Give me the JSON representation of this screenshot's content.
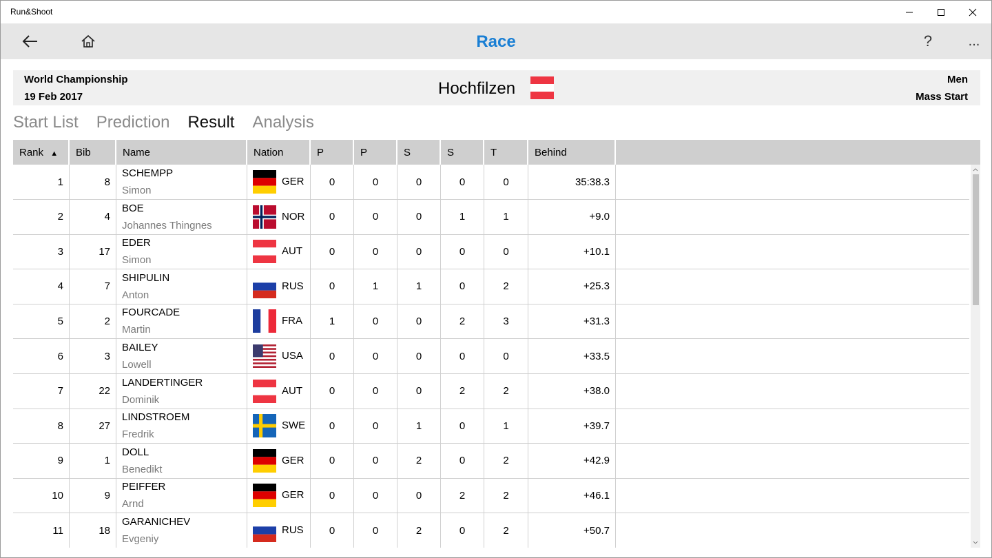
{
  "window": {
    "title": "Run&Shoot"
  },
  "appbar": {
    "title": "Race",
    "help": "?",
    "more": "..."
  },
  "event": {
    "competition": "World Championship",
    "date": "19 Feb 2017",
    "venue": "Hochfilzen",
    "category": "Men",
    "discipline": "Mass Start"
  },
  "tabs": [
    {
      "label": "Start List"
    },
    {
      "label": "Prediction"
    },
    {
      "label": "Result"
    },
    {
      "label": "Analysis"
    }
  ],
  "active_tab": "Result",
  "columns": [
    "Rank",
    "Bib",
    "Name",
    "Nation",
    "P",
    "P",
    "S",
    "S",
    "T",
    "Behind"
  ],
  "sort_indicator": "▲",
  "rows": [
    {
      "rank": "1",
      "bib": "8",
      "last": "SCHEMPP",
      "first": "Simon",
      "nation": "GER",
      "s1": "0",
      "s2": "0",
      "s3": "0",
      "s4": "0",
      "t": "0",
      "behind": "35:38.3"
    },
    {
      "rank": "2",
      "bib": "4",
      "last": "BOE",
      "first": "Johannes Thingnes",
      "nation": "NOR",
      "s1": "0",
      "s2": "0",
      "s3": "0",
      "s4": "1",
      "t": "1",
      "behind": "+9.0"
    },
    {
      "rank": "3",
      "bib": "17",
      "last": "EDER",
      "first": "Simon",
      "nation": "AUT",
      "s1": "0",
      "s2": "0",
      "s3": "0",
      "s4": "0",
      "t": "0",
      "behind": "+10.1"
    },
    {
      "rank": "4",
      "bib": "7",
      "last": "SHIPULIN",
      "first": "Anton",
      "nation": "RUS",
      "s1": "0",
      "s2": "1",
      "s3": "1",
      "s4": "0",
      "t": "2",
      "behind": "+25.3"
    },
    {
      "rank": "5",
      "bib": "2",
      "last": "FOURCADE",
      "first": "Martin",
      "nation": "FRA",
      "s1": "1",
      "s2": "0",
      "s3": "0",
      "s4": "2",
      "t": "3",
      "behind": "+31.3"
    },
    {
      "rank": "6",
      "bib": "3",
      "last": "BAILEY",
      "first": "Lowell",
      "nation": "USA",
      "s1": "0",
      "s2": "0",
      "s3": "0",
      "s4": "0",
      "t": "0",
      "behind": "+33.5"
    },
    {
      "rank": "7",
      "bib": "22",
      "last": "LANDERTINGER",
      "first": "Dominik",
      "nation": "AUT",
      "s1": "0",
      "s2": "0",
      "s3": "0",
      "s4": "2",
      "t": "2",
      "behind": "+38.0"
    },
    {
      "rank": "8",
      "bib": "27",
      "last": "LINDSTROEM",
      "first": "Fredrik",
      "nation": "SWE",
      "s1": "0",
      "s2": "0",
      "s3": "1",
      "s4": "0",
      "t": "1",
      "behind": "+39.7"
    },
    {
      "rank": "9",
      "bib": "1",
      "last": "DOLL",
      "first": "Benedikt",
      "nation": "GER",
      "s1": "0",
      "s2": "0",
      "s3": "2",
      "s4": "0",
      "t": "2",
      "behind": "+42.9"
    },
    {
      "rank": "10",
      "bib": "9",
      "last": "PEIFFER",
      "first": "Arnd",
      "nation": "GER",
      "s1": "0",
      "s2": "0",
      "s3": "0",
      "s4": "2",
      "t": "2",
      "behind": "+46.1"
    },
    {
      "rank": "11",
      "bib": "18",
      "last": "GARANICHEV",
      "first": "Evgeniy",
      "nation": "RUS",
      "s1": "0",
      "s2": "0",
      "s3": "2",
      "s4": "0",
      "t": "2",
      "behind": "+50.7"
    }
  ],
  "colors": {
    "accent": "#1a7fd4",
    "header_bg": "#cfcfcf",
    "appbar_bg": "#e6e6e6"
  }
}
